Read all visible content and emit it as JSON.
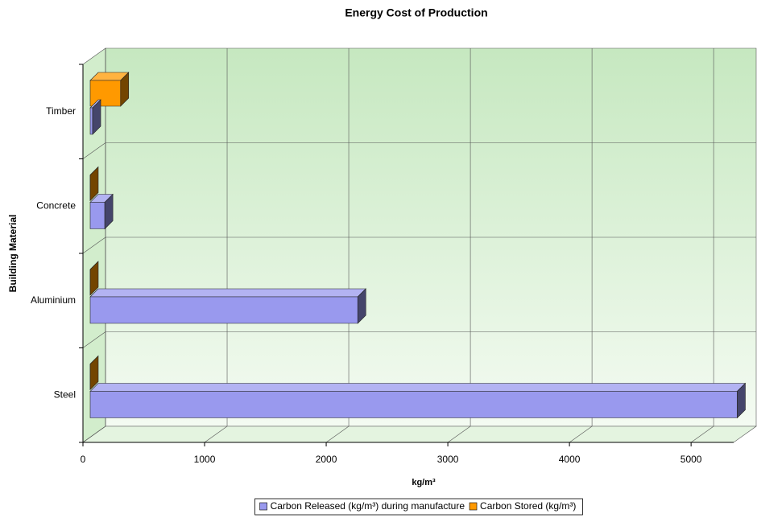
{
  "chart_data": {
    "type": "bar3d_horizontal",
    "title": "Energy Cost of Production",
    "x_label": "kg/m³",
    "y_label": "Building Material",
    "categories": [
      "Timber",
      "Concrete",
      "Aluminium",
      "Steel"
    ],
    "series": [
      {
        "name": "Carbon Released (kg/m³) during manufacture",
        "color": "#9999ee",
        "values": [
          20,
          120,
          2200,
          5320
        ]
      },
      {
        "name": "Carbon Stored (kg/m³)",
        "color": "#ff9900",
        "values": [
          250,
          0,
          0,
          0
        ]
      }
    ],
    "xlim": [
      0,
      5350
    ],
    "xticks": [
      0,
      1000,
      2000,
      3000,
      4000,
      5000
    ],
    "grid": true,
    "legend": "bottom"
  }
}
